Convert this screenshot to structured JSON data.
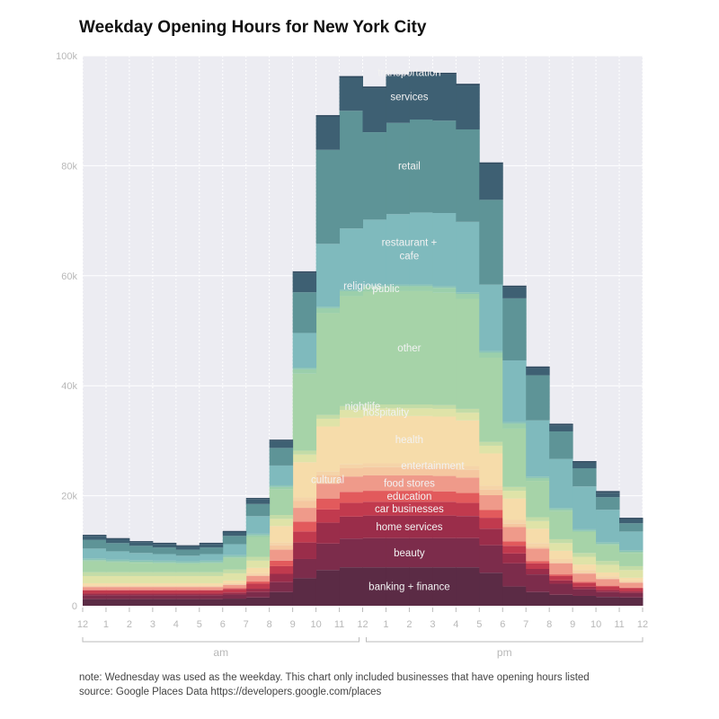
{
  "chart_data": {
    "type": "area",
    "title": "Weekday Opening Hours for New York City",
    "xlabel": "",
    "ylabel": "",
    "x": [
      12,
      1,
      2,
      3,
      4,
      5,
      6,
      7,
      8,
      9,
      10,
      11,
      12,
      1,
      2,
      3,
      4,
      5,
      6,
      7,
      8,
      9,
      10,
      11
    ],
    "x_ticks": [
      "12",
      "1",
      "2",
      "3",
      "4",
      "5",
      "6",
      "7",
      "8",
      "9",
      "10",
      "11",
      "12",
      "1",
      "2",
      "3",
      "4",
      "5",
      "6",
      "7",
      "8",
      "9",
      "10",
      "11",
      "12"
    ],
    "x_groups": [
      "am",
      "pm"
    ],
    "ylim": [
      0,
      100000
    ],
    "y_ticks": [
      0,
      20000,
      40000,
      60000,
      80000,
      100000
    ],
    "y_tick_labels": [
      "0",
      "20k",
      "40k",
      "60k",
      "80k",
      "100k"
    ],
    "grid": true,
    "stacked": true,
    "series": [
      {
        "name": "banking + finance",
        "color": "#5b2b45",
        "values": [
          1200,
          1200,
          1200,
          1200,
          1200,
          1200,
          1300,
          1500,
          2500,
          5000,
          6500,
          7000,
          7000,
          7000,
          7000,
          7000,
          7000,
          6000,
          3500,
          2500,
          2000,
          1800,
          1600,
          1500
        ]
      },
      {
        "name": "beauty",
        "color": "#7c2c4b",
        "values": [
          700,
          700,
          700,
          700,
          700,
          700,
          750,
          1000,
          1800,
          3500,
          4800,
          5200,
          5300,
          5300,
          5300,
          5300,
          5300,
          5000,
          4200,
          3200,
          2000,
          1200,
          900,
          800
        ]
      },
      {
        "name": "home services",
        "color": "#9a2d4a",
        "values": [
          300,
          300,
          300,
          300,
          300,
          300,
          350,
          600,
          1500,
          3000,
          3800,
          4000,
          4100,
          4100,
          4100,
          4100,
          4000,
          3000,
          1800,
          1000,
          600,
          450,
          350,
          300
        ]
      },
      {
        "name": "car businesses",
        "color": "#c13a4e",
        "values": [
          600,
          600,
          600,
          600,
          600,
          600,
          650,
          900,
          1400,
          2000,
          2400,
          2500,
          2500,
          2500,
          2500,
          2500,
          2400,
          2000,
          1400,
          1000,
          800,
          700,
          650,
          600
        ]
      },
      {
        "name": "education",
        "color": "#e25a5c",
        "values": [
          100,
          100,
          100,
          100,
          100,
          100,
          150,
          400,
          1000,
          1800,
          2000,
          2000,
          2000,
          2000,
          2000,
          1900,
          1800,
          1400,
          800,
          400,
          300,
          200,
          150,
          100
        ]
      },
      {
        "name": "food stores",
        "color": "#ef9a8a",
        "values": [
          500,
          500,
          500,
          500,
          500,
          500,
          600,
          1000,
          2000,
          2500,
          2700,
          2800,
          2800,
          2800,
          2800,
          2800,
          2800,
          2700,
          2600,
          2300,
          2000,
          1500,
          1200,
          900
        ]
      },
      {
        "name": "cultural",
        "color": "#f5c7a0",
        "values": [
          100,
          100,
          100,
          100,
          100,
          100,
          100,
          200,
          800,
          1300,
          1500,
          1500,
          1500,
          1500,
          1500,
          1500,
          1400,
          1000,
          600,
          300,
          200,
          150,
          100,
          100
        ]
      },
      {
        "name": "entertainment",
        "color": "#f5d4a8",
        "values": [
          200,
          200,
          200,
          200,
          200,
          200,
          200,
          300,
          500,
          600,
          700,
          700,
          700,
          700,
          700,
          700,
          700,
          700,
          700,
          700,
          600,
          500,
          400,
          300
        ]
      },
      {
        "name": "health",
        "color": "#f6dcaa",
        "values": [
          400,
          400,
          400,
          400,
          400,
          400,
          500,
          1000,
          3000,
          6400,
          8200,
          8500,
          8600,
          8600,
          8600,
          8600,
          8300,
          5900,
          3900,
          2600,
          1500,
          1000,
          700,
          500
        ]
      },
      {
        "name": "hospitality",
        "color": "#dfe3a8",
        "values": [
          1300,
          1300,
          1300,
          1300,
          1300,
          1300,
          1300,
          1300,
          1300,
          1400,
          1400,
          1400,
          1400,
          1400,
          1400,
          1400,
          1400,
          1400,
          1400,
          1400,
          1400,
          1400,
          1400,
          1400
        ]
      },
      {
        "name": "nightlife",
        "color": "#c3dca7",
        "values": [
          700,
          700,
          700,
          700,
          700,
          700,
          700,
          700,
          700,
          700,
          700,
          700,
          700,
          700,
          700,
          700,
          700,
          700,
          700,
          700,
          700,
          700,
          700,
          700
        ]
      },
      {
        "name": "other",
        "color": "#a6d3a8",
        "values": [
          2000,
          1800,
          1700,
          1600,
          1500,
          1600,
          2100,
          3600,
          4700,
          14000,
          18500,
          20000,
          20500,
          20600,
          20600,
          20400,
          20000,
          15300,
          10600,
          6600,
          5100,
          3800,
          2900,
          2400
        ]
      },
      {
        "name": "public",
        "color": "#9bcfab",
        "values": [
          200,
          200,
          200,
          200,
          200,
          200,
          200,
          300,
          400,
          800,
          900,
          900,
          900,
          900,
          900,
          900,
          900,
          900,
          900,
          500,
          300,
          200,
          200,
          200
        ]
      },
      {
        "name": "religious",
        "color": "#8bc5b7",
        "values": [
          300,
          300,
          300,
          300,
          300,
          300,
          300,
          300,
          300,
          300,
          300,
          300,
          300,
          300,
          300,
          300,
          300,
          300,
          300,
          300,
          300,
          300,
          300,
          300
        ]
      },
      {
        "name": "restaurant + cafe",
        "color": "#7fbabd",
        "values": [
          1800,
          1500,
          1300,
          1200,
          1000,
          1200,
          2000,
          3200,
          3600,
          6300,
          11400,
          11100,
          11900,
          12800,
          13100,
          13300,
          12800,
          12100,
          11200,
          10200,
          8900,
          7800,
          5900,
          3400
        ]
      },
      {
        "name": "retail",
        "color": "#5e9497",
        "values": [
          1600,
          1500,
          1300,
          1200,
          1100,
          1200,
          1500,
          2200,
          3200,
          7400,
          17100,
          21400,
          15900,
          16600,
          16900,
          16800,
          16800,
          15400,
          11300,
          8200,
          5000,
          3300,
          2300,
          1500
        ]
      },
      {
        "name": "services",
        "color": "#3e6073",
        "values": [
          700,
          700,
          650,
          650,
          600,
          650,
          700,
          900,
          1300,
          3500,
          6000,
          6000,
          8000,
          8500,
          8400,
          8400,
          8000,
          6500,
          2000,
          1300,
          1100,
          1000,
          800,
          700
        ]
      },
      {
        "name": "transportation",
        "color": "#2f4a5f",
        "values": [
          200,
          200,
          200,
          200,
          200,
          200,
          200,
          200,
          200,
          300,
          300,
          300,
          300,
          300,
          300,
          300,
          300,
          300,
          300,
          300,
          300,
          300,
          300,
          300
        ]
      }
    ],
    "labels": [
      {
        "text": "transportation",
        "series": "transportation"
      },
      {
        "text": "services",
        "series": "services"
      },
      {
        "text": "retail",
        "series": "retail"
      },
      {
        "text": "restaurant +",
        "series": "restaurant + cafe"
      },
      {
        "text": "cafe",
        "series": "restaurant + cafe"
      },
      {
        "text": "religious",
        "series": "religious"
      },
      {
        "text": "public",
        "series": "public"
      },
      {
        "text": "other",
        "series": "other"
      },
      {
        "text": "nightlife",
        "series": "nightlife"
      },
      {
        "text": "hospitality",
        "series": "hospitality"
      },
      {
        "text": "health",
        "series": "health"
      },
      {
        "text": "entertainment",
        "series": "entertainment"
      },
      {
        "text": "cultural",
        "series": "cultural"
      },
      {
        "text": "food stores",
        "series": "food stores"
      },
      {
        "text": "education",
        "series": "education"
      },
      {
        "text": "car businesses",
        "series": "car businesses"
      },
      {
        "text": "home services",
        "series": "home services"
      },
      {
        "text": "beauty",
        "series": "beauty"
      },
      {
        "text": "banking + finance",
        "series": "banking + finance"
      }
    ]
  },
  "notes": {
    "note": "note: Wednesday was used as the weekday. This chart only included businesses that have opening hours listed",
    "source": "source: Google Places Data https://developers.google.com/places"
  }
}
